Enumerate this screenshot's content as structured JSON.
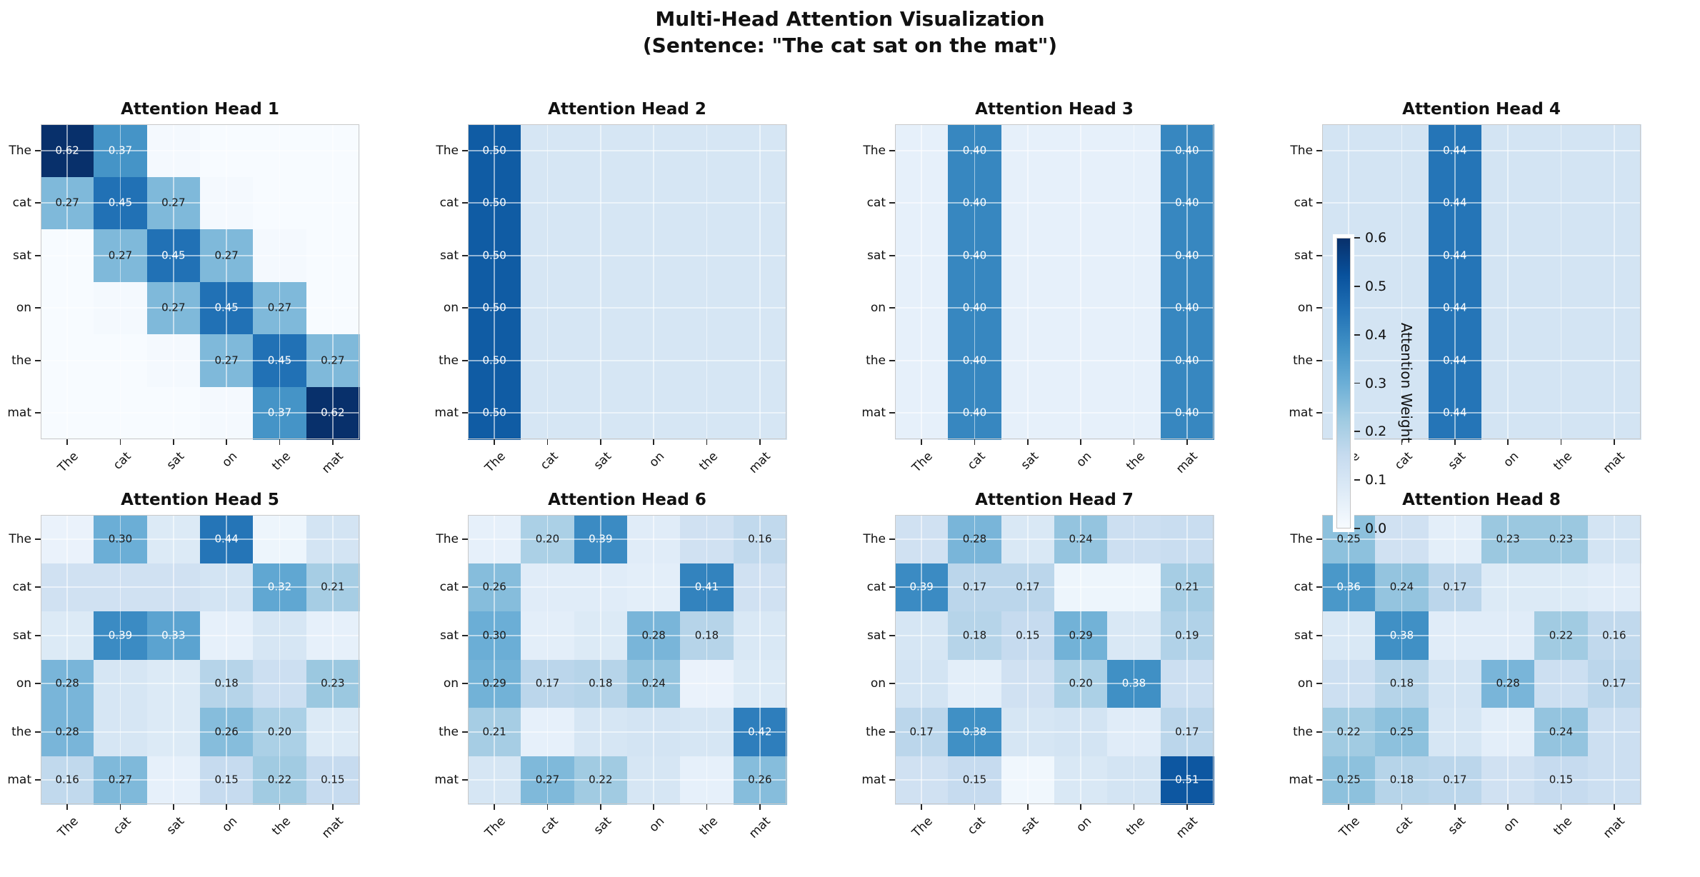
{
  "figure": {
    "title_line1": "Multi-Head Attention Visualization",
    "title_line2": "(Sentence: \"The cat sat on the mat\")"
  },
  "tokens": [
    "The",
    "cat",
    "sat",
    "on",
    "the",
    "mat"
  ],
  "colorbar": {
    "label": "Attention Weight",
    "ticks": [
      "0.6",
      "0.5",
      "0.4",
      "0.3",
      "0.2",
      "0.1",
      "0.0"
    ],
    "vmin": 0.0,
    "vmax": 0.6
  },
  "style": {
    "colormap": "Blues",
    "cmap_low": "#f7fbff",
    "cmap_high": "#08306b",
    "annotation_threshold": 0.15,
    "white_text_threshold": 0.3,
    "annotation_decimals": 2,
    "grid_color": "rgba(255,255,255,0.55)"
  },
  "chart_data": [
    {
      "type": "heatmap",
      "title": "Attention Head 1",
      "x_labels": [
        "The",
        "cat",
        "sat",
        "on",
        "the",
        "mat"
      ],
      "y_labels": [
        "The",
        "cat",
        "sat",
        "on",
        "the",
        "mat"
      ],
      "values": [
        [
          0.62,
          0.37,
          0.01,
          0.0,
          0.0,
          0.0
        ],
        [
          0.27,
          0.45,
          0.27,
          0.01,
          0.0,
          0.0
        ],
        [
          0.0,
          0.27,
          0.45,
          0.27,
          0.01,
          0.0
        ],
        [
          0.0,
          0.01,
          0.27,
          0.45,
          0.27,
          0.0
        ],
        [
          0.0,
          0.0,
          0.01,
          0.27,
          0.45,
          0.27
        ],
        [
          0.0,
          0.0,
          0.0,
          0.01,
          0.37,
          0.62
        ]
      ]
    },
    {
      "type": "heatmap",
      "title": "Attention Head 2",
      "x_labels": [
        "The",
        "cat",
        "sat",
        "on",
        "the",
        "mat"
      ],
      "y_labels": [
        "The",
        "cat",
        "sat",
        "on",
        "the",
        "mat"
      ],
      "values": [
        [
          0.5,
          0.1,
          0.1,
          0.1,
          0.1,
          0.1
        ],
        [
          0.5,
          0.1,
          0.1,
          0.1,
          0.1,
          0.1
        ],
        [
          0.5,
          0.1,
          0.1,
          0.1,
          0.1,
          0.1
        ],
        [
          0.5,
          0.1,
          0.1,
          0.1,
          0.1,
          0.1
        ],
        [
          0.5,
          0.1,
          0.1,
          0.1,
          0.1,
          0.1
        ],
        [
          0.5,
          0.1,
          0.1,
          0.1,
          0.1,
          0.1
        ]
      ]
    },
    {
      "type": "heatmap",
      "title": "Attention Head 3",
      "x_labels": [
        "The",
        "cat",
        "sat",
        "on",
        "the",
        "mat"
      ],
      "y_labels": [
        "The",
        "cat",
        "sat",
        "on",
        "the",
        "mat"
      ],
      "values": [
        [
          0.05,
          0.4,
          0.05,
          0.05,
          0.05,
          0.4
        ],
        [
          0.05,
          0.4,
          0.05,
          0.05,
          0.05,
          0.4
        ],
        [
          0.05,
          0.4,
          0.05,
          0.05,
          0.05,
          0.4
        ],
        [
          0.05,
          0.4,
          0.05,
          0.05,
          0.05,
          0.4
        ],
        [
          0.05,
          0.4,
          0.05,
          0.05,
          0.05,
          0.4
        ],
        [
          0.05,
          0.4,
          0.05,
          0.05,
          0.05,
          0.4
        ]
      ]
    },
    {
      "type": "heatmap",
      "title": "Attention Head 4",
      "x_labels": [
        "The",
        "cat",
        "sat",
        "on",
        "the",
        "mat"
      ],
      "y_labels": [
        "The",
        "cat",
        "sat",
        "on",
        "the",
        "mat"
      ],
      "values": [
        [
          0.11,
          0.11,
          0.44,
          0.11,
          0.11,
          0.11
        ],
        [
          0.11,
          0.11,
          0.44,
          0.11,
          0.11,
          0.11
        ],
        [
          0.11,
          0.11,
          0.44,
          0.11,
          0.11,
          0.11
        ],
        [
          0.11,
          0.11,
          0.44,
          0.11,
          0.11,
          0.11
        ],
        [
          0.11,
          0.11,
          0.44,
          0.11,
          0.11,
          0.11
        ],
        [
          0.11,
          0.11,
          0.44,
          0.11,
          0.11,
          0.11
        ]
      ]
    },
    {
      "type": "heatmap",
      "title": "Attention Head 5",
      "x_labels": [
        "The",
        "cat",
        "sat",
        "on",
        "the",
        "mat"
      ],
      "y_labels": [
        "The",
        "cat",
        "sat",
        "on",
        "the",
        "mat"
      ],
      "values": [
        [
          0.04,
          0.3,
          0.08,
          0.44,
          0.03,
          0.11
        ],
        [
          0.12,
          0.12,
          0.12,
          0.11,
          0.32,
          0.21
        ],
        [
          0.08,
          0.39,
          0.33,
          0.05,
          0.1,
          0.05
        ],
        [
          0.28,
          0.1,
          0.08,
          0.18,
          0.13,
          0.23
        ],
        [
          0.28,
          0.1,
          0.08,
          0.26,
          0.2,
          0.08
        ],
        [
          0.16,
          0.27,
          0.05,
          0.15,
          0.22,
          0.15
        ]
      ]
    },
    {
      "type": "heatmap",
      "title": "Attention Head 6",
      "x_labels": [
        "The",
        "cat",
        "sat",
        "on",
        "the",
        "mat"
      ],
      "y_labels": [
        "The",
        "cat",
        "sat",
        "on",
        "the",
        "mat"
      ],
      "values": [
        [
          0.05,
          0.2,
          0.39,
          0.07,
          0.12,
          0.16
        ],
        [
          0.26,
          0.07,
          0.07,
          0.06,
          0.41,
          0.12
        ],
        [
          0.3,
          0.06,
          0.08,
          0.28,
          0.18,
          0.09
        ],
        [
          0.29,
          0.17,
          0.18,
          0.24,
          0.04,
          0.08
        ],
        [
          0.21,
          0.05,
          0.1,
          0.11,
          0.1,
          0.42
        ],
        [
          0.1,
          0.27,
          0.22,
          0.1,
          0.05,
          0.26
        ]
      ]
    },
    {
      "type": "heatmap",
      "title": "Attention Head 7",
      "x_labels": [
        "The",
        "cat",
        "sat",
        "on",
        "the",
        "mat"
      ],
      "y_labels": [
        "The",
        "cat",
        "sat",
        "on",
        "the",
        "mat"
      ],
      "values": [
        [
          0.12,
          0.28,
          0.09,
          0.24,
          0.13,
          0.14
        ],
        [
          0.39,
          0.17,
          0.17,
          0.03,
          0.03,
          0.21
        ],
        [
          0.1,
          0.18,
          0.15,
          0.29,
          0.09,
          0.19
        ],
        [
          0.11,
          0.06,
          0.12,
          0.2,
          0.38,
          0.13
        ],
        [
          0.17,
          0.38,
          0.1,
          0.11,
          0.07,
          0.17
        ],
        [
          0.12,
          0.15,
          0.02,
          0.09,
          0.11,
          0.51
        ]
      ]
    },
    {
      "type": "heatmap",
      "title": "Attention Head 8",
      "x_labels": [
        "The",
        "cat",
        "sat",
        "on",
        "the",
        "mat"
      ],
      "y_labels": [
        "The",
        "cat",
        "sat",
        "on",
        "the",
        "mat"
      ],
      "values": [
        [
          0.25,
          0.12,
          0.06,
          0.23,
          0.23,
          0.11
        ],
        [
          0.36,
          0.24,
          0.17,
          0.08,
          0.08,
          0.07
        ],
        [
          0.09,
          0.38,
          0.07,
          0.07,
          0.22,
          0.16
        ],
        [
          0.13,
          0.18,
          0.11,
          0.28,
          0.13,
          0.17
        ],
        [
          0.22,
          0.25,
          0.1,
          0.06,
          0.24,
          0.13
        ],
        [
          0.25,
          0.18,
          0.17,
          0.12,
          0.15,
          0.13
        ]
      ]
    }
  ]
}
